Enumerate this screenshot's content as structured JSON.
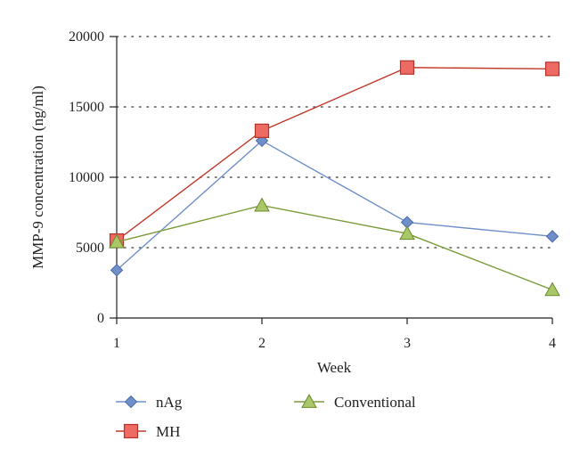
{
  "chart_data": {
    "type": "line",
    "xlabel": "Week",
    "ylabel": "MMP-9 concentration (ng/ml)",
    "x": [
      1,
      2,
      3,
      4
    ],
    "xticks": [
      "1",
      "2",
      "3",
      "4"
    ],
    "ylim": [
      0,
      20000
    ],
    "yticks": [
      "0",
      "5000",
      "10000",
      "15000",
      "20000"
    ],
    "grid": "horizontal dotted",
    "legend_position": "bottom",
    "series": [
      {
        "name": "nAg",
        "values": [
          3400,
          12600,
          6800,
          5800
        ],
        "color": "#6f8fca",
        "marker": "diamond"
      },
      {
        "name": "MH",
        "values": [
          5500,
          13300,
          17800,
          17700
        ],
        "color": "#c0392b",
        "marker": "square"
      },
      {
        "name": "Conventional",
        "values": [
          5400,
          8000,
          6000,
          2000
        ],
        "color": "#7a9a3a",
        "marker": "triangle"
      }
    ]
  }
}
